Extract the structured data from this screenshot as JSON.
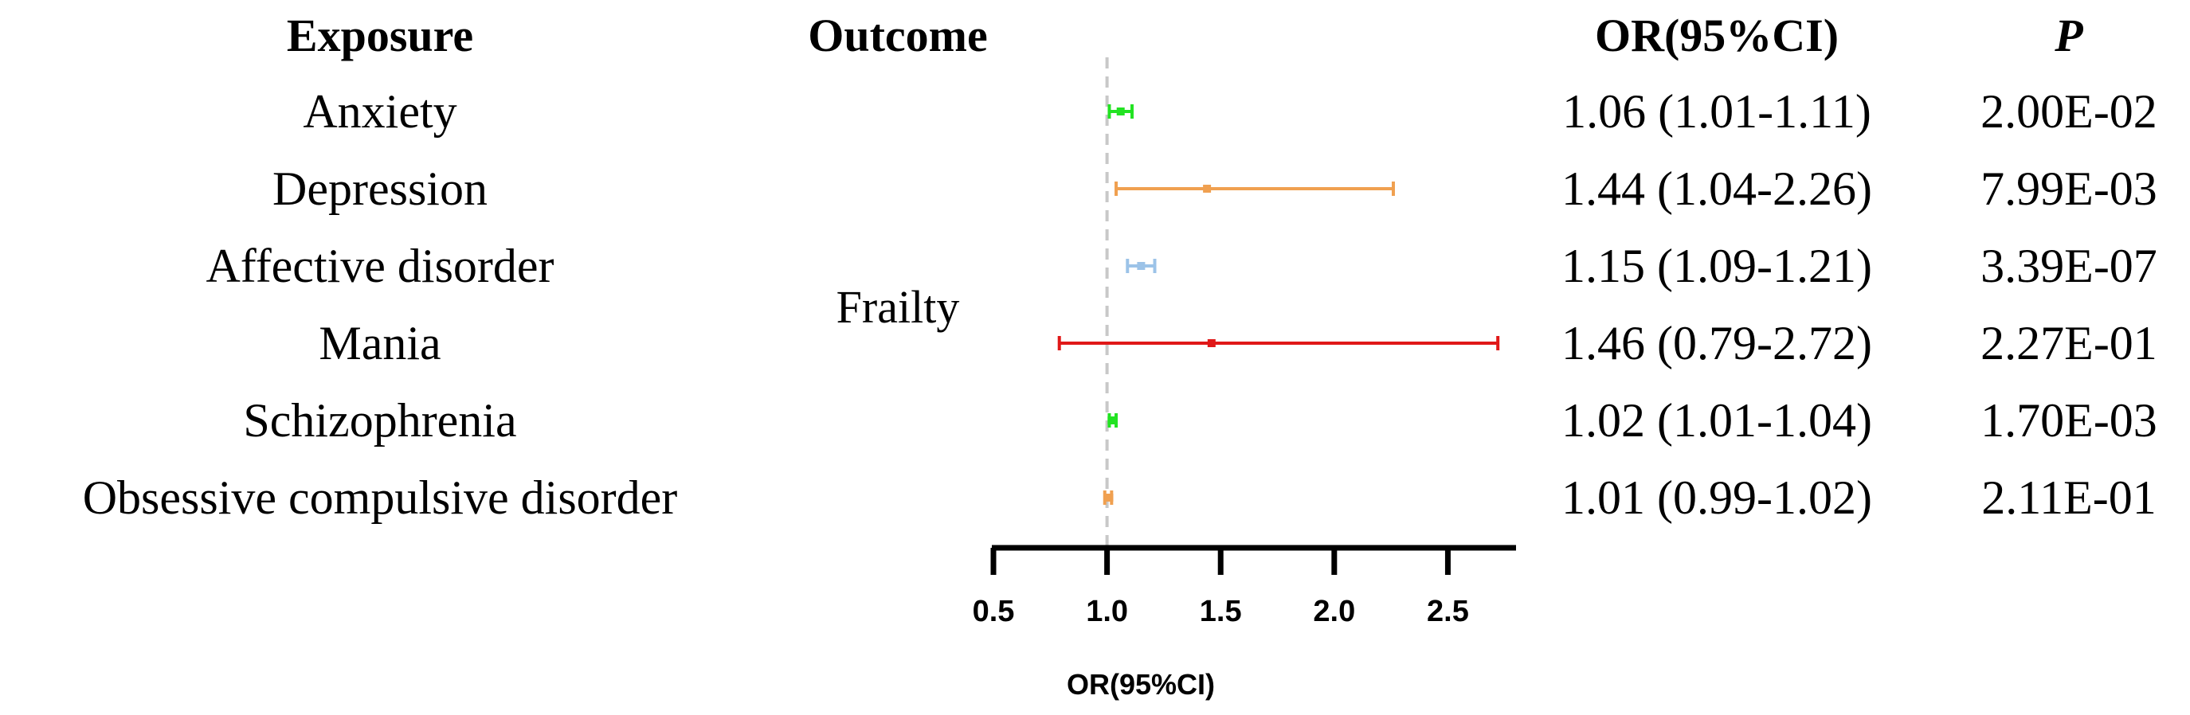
{
  "chart_data": {
    "type": "forest",
    "headers": {
      "exposure": "Exposure",
      "outcome": "Outcome",
      "or": "OR(95%CI)",
      "p": "P"
    },
    "outcome_label": "Frailty",
    "rows": [
      {
        "exposure": "Anxiety",
        "estimate": 1.06,
        "lower": 1.01,
        "upper": 1.11,
        "or_text": "1.06 (1.01-1.11)",
        "p": "2.00E-02",
        "color": "#22e322"
      },
      {
        "exposure": "Depression",
        "estimate": 1.44,
        "lower": 1.04,
        "upper": 2.26,
        "or_text": "1.44 (1.04-2.26)",
        "p": "7.99E-03",
        "color": "#f0a050"
      },
      {
        "exposure": "Affective disorder",
        "estimate": 1.15,
        "lower": 1.09,
        "upper": 1.21,
        "or_text": "1.15 (1.09-1.21)",
        "p": "3.39E-07",
        "color": "#9cc3e8"
      },
      {
        "exposure": "Mania",
        "estimate": 1.46,
        "lower": 0.79,
        "upper": 2.72,
        "or_text": "1.46 (0.79-2.72)",
        "p": "2.27E-01",
        "color": "#e01818"
      },
      {
        "exposure": "Schizophrenia",
        "estimate": 1.02,
        "lower": 1.01,
        "upper": 1.04,
        "or_text": "1.02 (1.01-1.04)",
        "p": "1.70E-03",
        "color": "#22e322"
      },
      {
        "exposure": "Obsessive compulsive disorder",
        "estimate": 1.01,
        "lower": 0.99,
        "upper": 1.02,
        "or_text": "1.01 (0.99-1.02)",
        "p": "2.11E-01",
        "color": "#f0a050"
      }
    ],
    "x_axis": {
      "label": "OR(95%CI)",
      "ticks": [
        "0.5",
        "1.0",
        "1.5",
        "2.0",
        "2.5"
      ],
      "min": 0.5,
      "max": 2.8,
      "reference": 1.0
    }
  }
}
